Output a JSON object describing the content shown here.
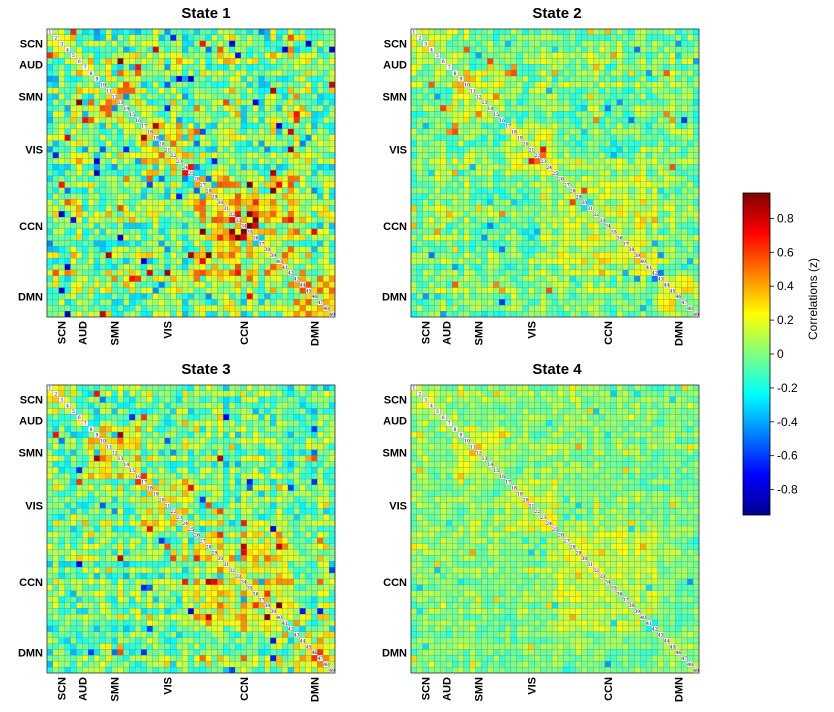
{
  "chart_data": {
    "type": "heatmap",
    "matrix_size": 49,
    "panels": [
      {
        "title": "State 1",
        "seed": 11,
        "intensity": 1.0
      },
      {
        "title": "State 2",
        "seed": 23,
        "intensity": 0.6
      },
      {
        "title": "State 3",
        "seed": 37,
        "intensity": 0.8
      },
      {
        "title": "State 4",
        "seed": 51,
        "intensity": 0.45
      }
    ],
    "networks": [
      {
        "label": "SCN",
        "start": 1,
        "end": 5
      },
      {
        "label": "AUD",
        "start": 6,
        "end": 7
      },
      {
        "label": "SMN",
        "start": 8,
        "end": 16
      },
      {
        "label": "VIS",
        "start": 17,
        "end": 25
      },
      {
        "label": "CCN",
        "start": 26,
        "end": 42
      },
      {
        "label": "DMN",
        "start": 43,
        "end": 49
      }
    ],
    "colorbar": {
      "label": "Correlations (z)",
      "range": [
        -0.95,
        0.95
      ],
      "ticks": [
        0.8,
        0.6,
        0.4,
        0.2,
        0,
        -0.2,
        -0.4,
        -0.6,
        -0.8
      ],
      "tick_labels": [
        "0.8",
        "0.6",
        "0.4",
        "0.2",
        "0",
        "-0.2",
        "-0.4",
        "-0.6",
        "-0.8"
      ],
      "colormap": "jet"
    }
  }
}
